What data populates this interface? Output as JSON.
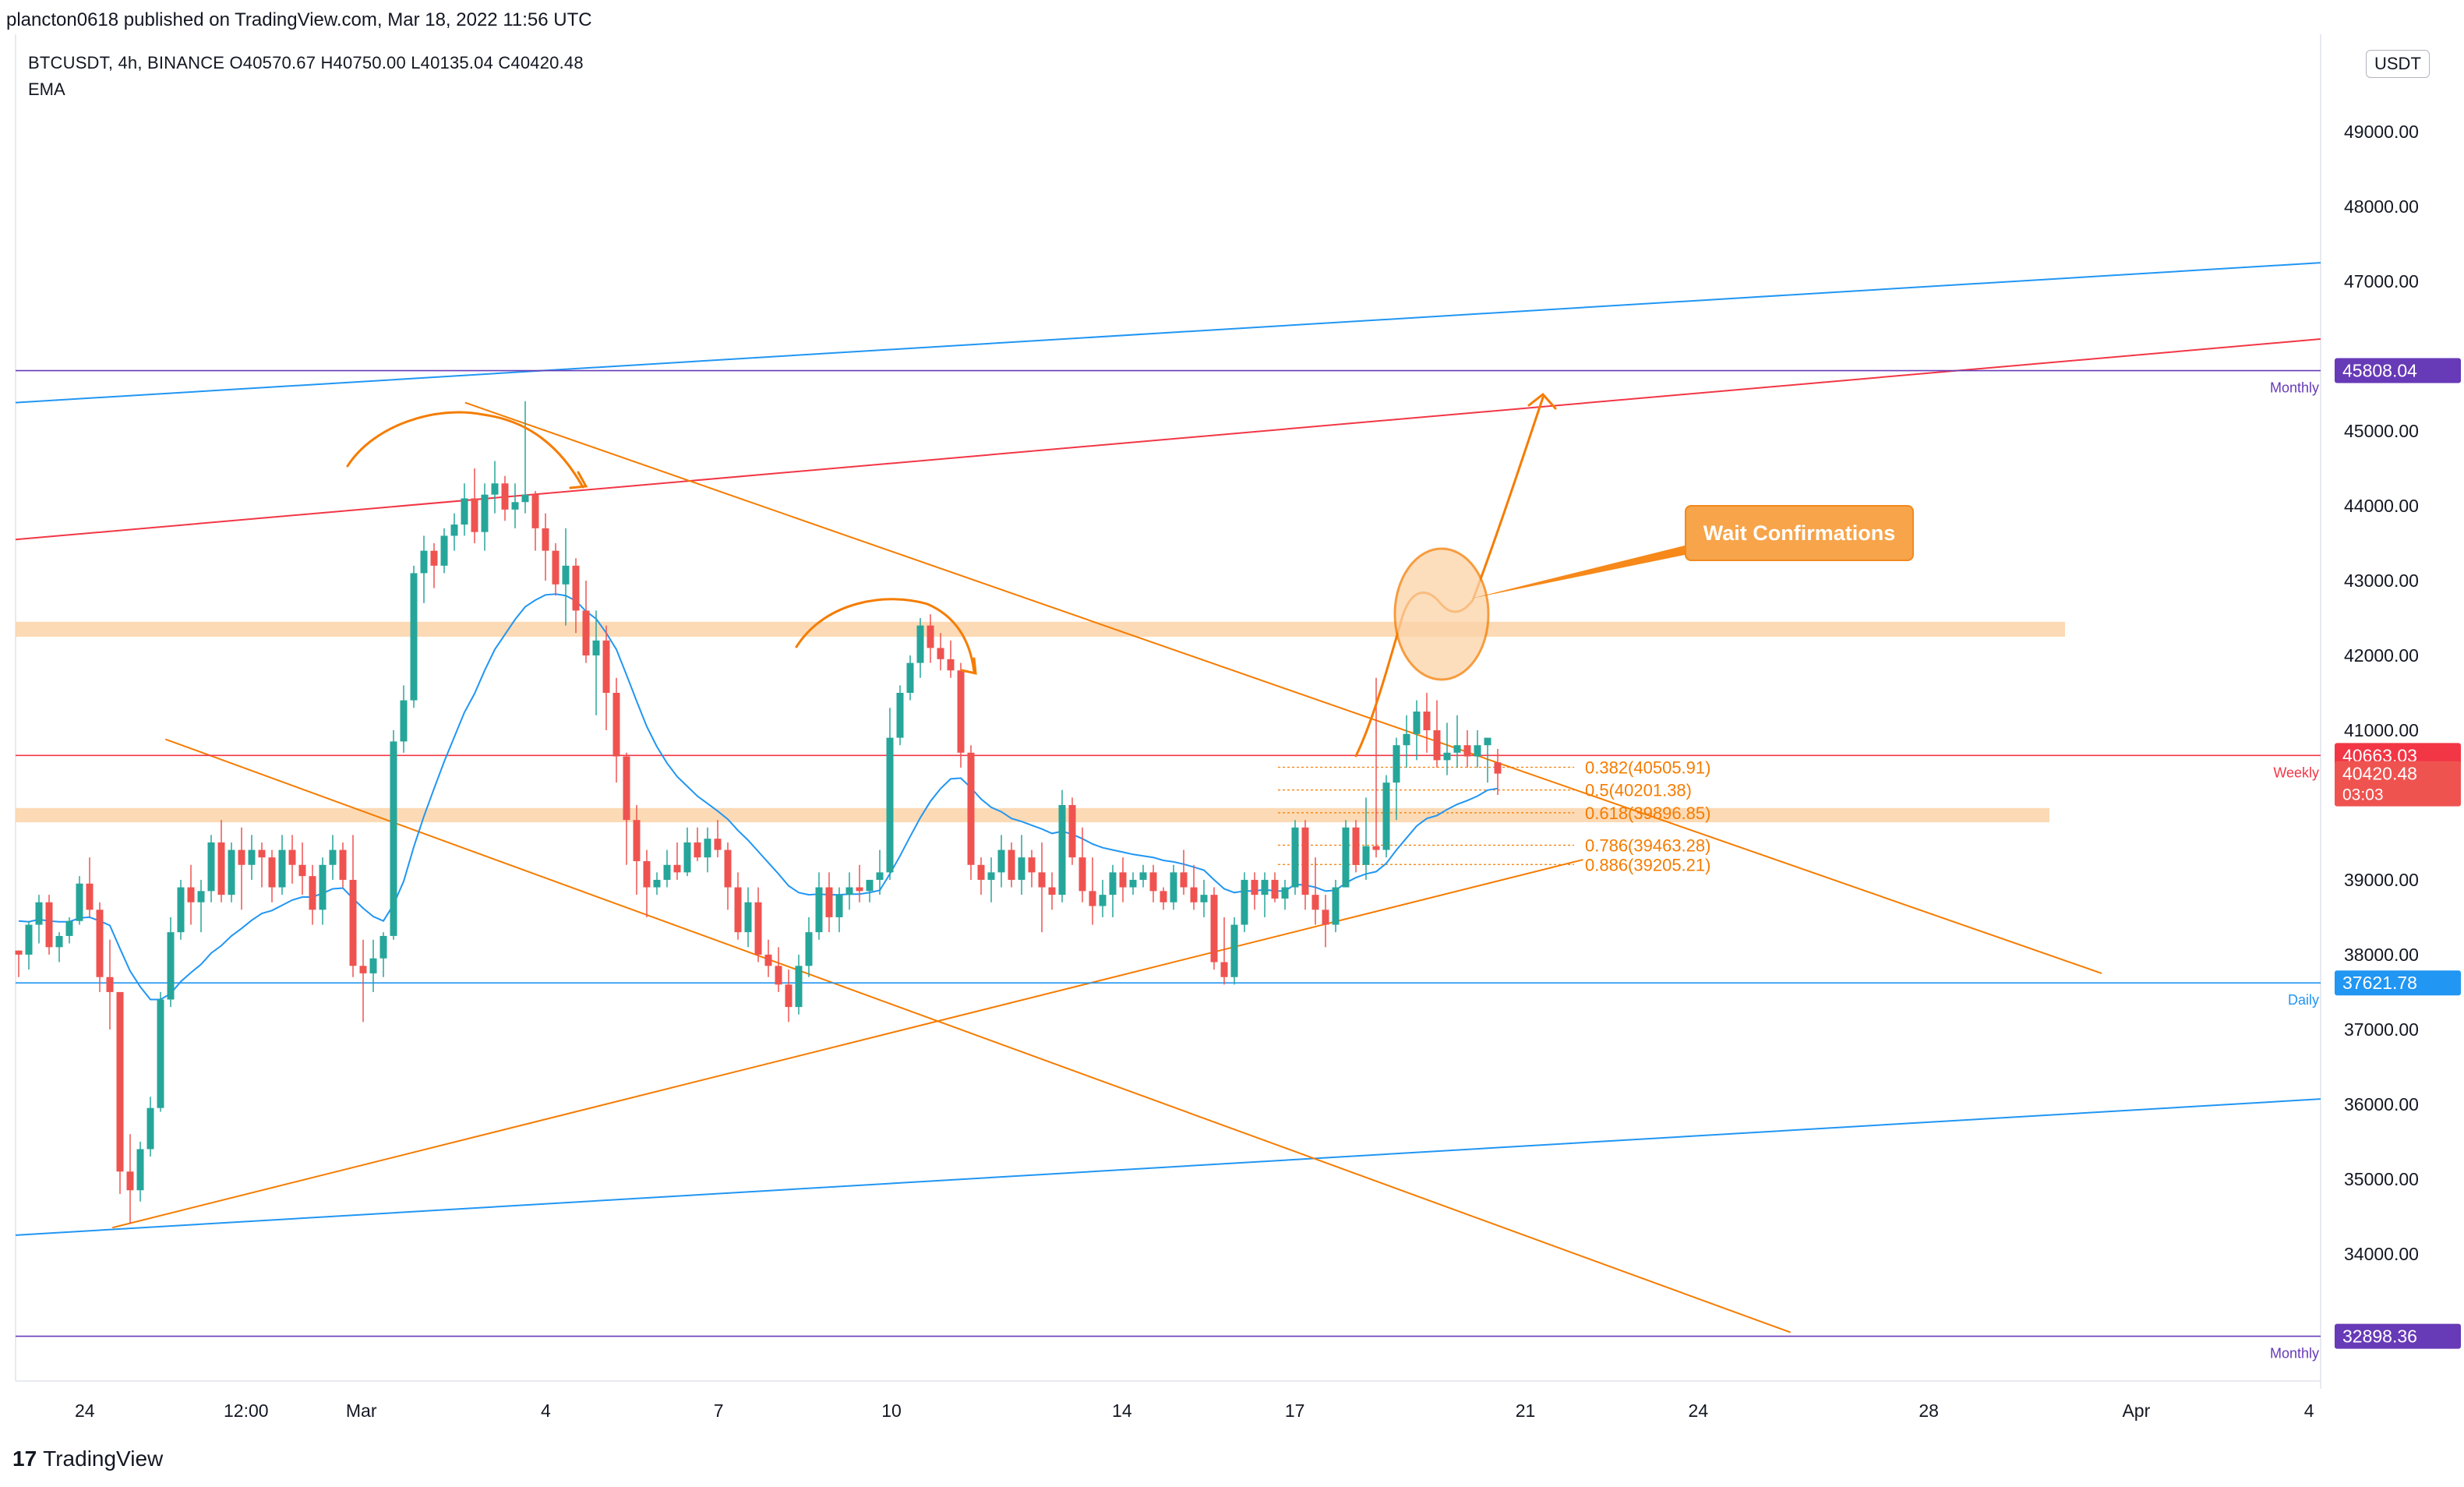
{
  "header": {
    "published_text": "plancton0618 published on TradingView.com, Mar 18, 2022 11:56 UTC",
    "symbol_line": "BTCUSDT, 4h, BINANCE  O40570.67  H40750.00  L40135.04  C40420.48",
    "indicator_label": "EMA",
    "currency_button": "USDT"
  },
  "footer": {
    "logo_mark": "17",
    "logo_text": "TradingView"
  },
  "annotation": {
    "callout_text": "Wait Confirmations"
  },
  "colors": {
    "up": "#26a69a",
    "down": "#ef5350",
    "ema": "#2196f3",
    "orange": "#f57c00",
    "red_level": "#f23645",
    "purple_level": "#673ab7",
    "blue_level": "#2196f3",
    "zone": "#fbd3a8"
  },
  "chart_data": {
    "type": "candlestick",
    "symbol": "BTCUSDT",
    "timeframe": "4h",
    "exchange": "BINANCE",
    "last_ohlc": {
      "open": 40570.67,
      "high": 40750.0,
      "low": 40135.04,
      "close": 40420.48
    },
    "y_axis": {
      "range": [
        32300,
        50200
      ],
      "ticks": [
        34000,
        35000,
        36000,
        37000,
        38000,
        39000,
        41000,
        42000,
        43000,
        44000,
        45000,
        47000,
        48000,
        49000
      ],
      "tick_labels": [
        "34000.00",
        "35000.00",
        "36000.00",
        "37000.00",
        "38000.00",
        "39000.00",
        "41000.00",
        "42000.00",
        "43000.00",
        "44000.00",
        "45000.00",
        "47000.00",
        "48000.00",
        "49000.00"
      ]
    },
    "x_axis": {
      "labels": [
        "24",
        "12:00",
        "Mar",
        "4",
        "7",
        "10",
        "14",
        "17",
        "21",
        "24",
        "28",
        "Apr",
        "4"
      ],
      "label_positions": [
        0.3,
        1.0,
        1.5,
        2.3,
        3.05,
        3.8,
        4.8,
        5.55,
        6.55,
        7.3,
        8.3,
        9.2,
        9.95
      ]
    },
    "price_labels": [
      {
        "value": 45808.04,
        "text": "45808.04",
        "tag": "Monthly",
        "color": "#673ab7"
      },
      {
        "value": 40663.03,
        "text": "40663.03",
        "tag": "Weekly",
        "color": "#f23645"
      },
      {
        "value": 40420.48,
        "text": "40420.48",
        "sub": "03:03",
        "color": "#ef5350"
      },
      {
        "value": 37621.78,
        "text": "37621.78",
        "tag": "Daily",
        "color": "#2196f3"
      },
      {
        "value": 32898.36,
        "text": "32898.36",
        "tag": "Monthly",
        "color": "#673ab7"
      }
    ],
    "horizontal_levels": [
      {
        "name": "Monthly",
        "value": 45808.04,
        "color": "#673ab7"
      },
      {
        "name": "Weekly",
        "value": 40663.03,
        "color": "#f23645"
      },
      {
        "name": "Daily",
        "value": 37621.78,
        "color": "#2196f3"
      },
      {
        "name": "Monthly",
        "value": 32898.36,
        "color": "#673ab7"
      }
    ],
    "zones": [
      {
        "from": 42250,
        "to": 42450
      },
      {
        "from": 39770,
        "to": 39960
      }
    ],
    "fibonacci": [
      {
        "ratio": "0.382",
        "value": 40505.91,
        "label": "0.382(40505.91)"
      },
      {
        "ratio": "0.5",
        "value": 40201.38,
        "label": "0.5(40201.38)"
      },
      {
        "ratio": "0.618",
        "value": 39896.85,
        "label": "0.618(39896.85)"
      },
      {
        "ratio": "0.786",
        "value": 39463.28,
        "label": "0.786(39463.28)"
      },
      {
        "ratio": "0.886",
        "value": 39205.21,
        "label": "0.886(39205.21)"
      }
    ],
    "trendlines": [
      {
        "color": "#2196f3",
        "from": [
          0.0,
          45380
        ],
        "to": [
          10.0,
          47250
        ]
      },
      {
        "color": "#f23645",
        "from": [
          0.0,
          43550
        ],
        "to": [
          10.0,
          46230
        ]
      },
      {
        "color": "#2196f3",
        "from": [
          0.0,
          34250
        ],
        "to": [
          10.0,
          36070
        ]
      },
      {
        "color": "#f57c00",
        "from": [
          1.95,
          45380
        ],
        "to": [
          9.05,
          37750
        ]
      },
      {
        "color": "#f57c00",
        "from": [
          0.65,
          40880
        ],
        "to": [
          7.7,
          32950
        ]
      },
      {
        "color": "#f57c00",
        "from": [
          0.42,
          34350
        ],
        "to": [
          6.8,
          39270
        ]
      }
    ],
    "candles": [
      [
        38055,
        38055,
        37700,
        38000
      ],
      [
        38000,
        38450,
        37800,
        38400
      ],
      [
        38400,
        38800,
        38150,
        38700
      ],
      [
        38700,
        38800,
        38000,
        38100
      ],
      [
        38100,
        38300,
        37900,
        38250
      ],
      [
        38250,
        38500,
        38150,
        38450
      ],
      [
        38450,
        39050,
        38400,
        38950
      ],
      [
        38950,
        39300,
        38500,
        38600
      ],
      [
        38600,
        38700,
        37500,
        37700
      ],
      [
        37700,
        38200,
        37000,
        37500
      ],
      [
        37500,
        37500,
        34800,
        35100
      ],
      [
        35100,
        35600,
        34400,
        34850
      ],
      [
        34850,
        35500,
        34700,
        35400
      ],
      [
        35400,
        36100,
        35300,
        35950
      ],
      [
        35950,
        37500,
        35900,
        37400
      ],
      [
        37400,
        38500,
        37300,
        38300
      ],
      [
        38300,
        39000,
        38200,
        38900
      ],
      [
        38900,
        39200,
        38400,
        38700
      ],
      [
        38700,
        39000,
        38300,
        38850
      ],
      [
        38850,
        39600,
        38700,
        39500
      ],
      [
        39500,
        39800,
        38700,
        38800
      ],
      [
        38800,
        39500,
        38700,
        39400
      ],
      [
        39400,
        39700,
        38600,
        39200
      ],
      [
        39200,
        39600,
        39000,
        39400
      ],
      [
        39400,
        39500,
        38900,
        39300
      ],
      [
        39300,
        39400,
        38700,
        38900
      ],
      [
        38900,
        39600,
        38800,
        39400
      ],
      [
        39400,
        39600,
        38950,
        39200
      ],
      [
        39200,
        39500,
        38800,
        39050
      ],
      [
        39050,
        39200,
        38400,
        38600
      ],
      [
        38600,
        39300,
        38400,
        39200
      ],
      [
        39200,
        39600,
        39000,
        39400
      ],
      [
        39400,
        39500,
        38900,
        39000
      ],
      [
        39000,
        39600,
        37700,
        37850
      ],
      [
        37850,
        38200,
        37100,
        37750
      ],
      [
        37750,
        38200,
        37500,
        37950
      ],
      [
        37950,
        38300,
        37700,
        38250
      ],
      [
        38250,
        41000,
        38200,
        40850
      ],
      [
        40850,
        41600,
        40700,
        41400
      ],
      [
        41400,
        43200,
        41300,
        43100
      ],
      [
        43100,
        43600,
        42700,
        43400
      ],
      [
        43400,
        43500,
        42900,
        43200
      ],
      [
        43200,
        43700,
        43100,
        43600
      ],
      [
        43600,
        43900,
        43400,
        43750
      ],
      [
        43750,
        44300,
        43600,
        44100
      ],
      [
        44100,
        44500,
        43500,
        43650
      ],
      [
        43650,
        44300,
        43400,
        44150
      ],
      [
        44150,
        44600,
        43900,
        44300
      ],
      [
        44300,
        44400,
        43800,
        43950
      ],
      [
        43950,
        44300,
        43700,
        44050
      ],
      [
        44050,
        45400,
        43900,
        44150
      ],
      [
        44150,
        44200,
        43400,
        43700
      ],
      [
        43700,
        43900,
        43000,
        43400
      ],
      [
        43400,
        43500,
        42800,
        42950
      ],
      [
        42950,
        43700,
        42400,
        43200
      ],
      [
        43200,
        43300,
        42300,
        42600
      ],
      [
        42600,
        43000,
        41900,
        42000
      ],
      [
        42000,
        42600,
        41200,
        42200
      ],
      [
        42200,
        42400,
        41000,
        41500
      ],
      [
        41500,
        41700,
        40300,
        40650
      ],
      [
        40650,
        40700,
        39200,
        39800
      ],
      [
        39800,
        40000,
        38800,
        39250
      ],
      [
        39250,
        39400,
        38500,
        38900
      ],
      [
        38900,
        39100,
        38800,
        39000
      ],
      [
        39000,
        39400,
        38900,
        39200
      ],
      [
        39200,
        39500,
        39000,
        39100
      ],
      [
        39100,
        39700,
        39050,
        39500
      ],
      [
        39500,
        39700,
        39250,
        39300
      ],
      [
        39300,
        39700,
        39100,
        39550
      ],
      [
        39550,
        39800,
        39300,
        39400
      ],
      [
        39400,
        39500,
        38600,
        38900
      ],
      [
        38900,
        39100,
        38200,
        38300
      ],
      [
        38300,
        38900,
        38100,
        38700
      ],
      [
        38700,
        38900,
        37900,
        38000
      ],
      [
        38000,
        38200,
        37700,
        37850
      ],
      [
        37850,
        38100,
        37500,
        37600
      ],
      [
        37600,
        37800,
        37100,
        37300
      ],
      [
        37300,
        38000,
        37200,
        37850
      ],
      [
        37850,
        38500,
        37700,
        38300
      ],
      [
        38300,
        39100,
        38200,
        38900
      ],
      [
        38900,
        39100,
        38300,
        38500
      ],
      [
        38500,
        38900,
        38300,
        38800
      ],
      [
        38800,
        39100,
        38600,
        38900
      ],
      [
        38900,
        39200,
        38700,
        38850
      ],
      [
        38850,
        39000,
        38700,
        39000
      ],
      [
        39000,
        39400,
        38800,
        39100
      ],
      [
        39100,
        41300,
        39000,
        40900
      ],
      [
        40900,
        41600,
        40800,
        41500
      ],
      [
        41500,
        42000,
        41400,
        41900
      ],
      [
        41900,
        42500,
        41700,
        42400
      ],
      [
        42400,
        42550,
        41900,
        42100
      ],
      [
        42100,
        42300,
        41800,
        41950
      ],
      [
        41950,
        42200,
        41700,
        41800
      ],
      [
        41800,
        41900,
        40500,
        40700
      ],
      [
        40700,
        40800,
        39000,
        39200
      ],
      [
        39200,
        39300,
        38800,
        39000
      ],
      [
        39000,
        39300,
        38700,
        39100
      ],
      [
        39100,
        39600,
        38900,
        39400
      ],
      [
        39400,
        39500,
        38900,
        39000
      ],
      [
        39000,
        39600,
        38800,
        39300
      ],
      [
        39300,
        39400,
        38900,
        39100
      ],
      [
        39100,
        39500,
        38300,
        38900
      ],
      [
        38900,
        39100,
        38600,
        38800
      ],
      [
        38800,
        40200,
        38700,
        40000
      ],
      [
        40000,
        40100,
        39200,
        39300
      ],
      [
        39300,
        39700,
        38700,
        38850
      ],
      [
        38850,
        39300,
        38400,
        38650
      ],
      [
        38650,
        39000,
        38500,
        38800
      ],
      [
        38800,
        39200,
        38500,
        39100
      ],
      [
        39100,
        39300,
        38700,
        38900
      ],
      [
        38900,
        39100,
        38800,
        39000
      ],
      [
        39000,
        39200,
        38900,
        39100
      ],
      [
        39100,
        39200,
        38700,
        38850
      ],
      [
        38850,
        38900,
        38600,
        38700
      ],
      [
        38700,
        39200,
        38600,
        39100
      ],
      [
        39100,
        39400,
        38800,
        38900
      ],
      [
        38900,
        39200,
        38600,
        38700
      ],
      [
        38700,
        39000,
        38500,
        38800
      ],
      [
        38800,
        38900,
        37800,
        37900
      ],
      [
        37900,
        38500,
        37600,
        37700
      ],
      [
        37700,
        38500,
        37600,
        38400
      ],
      [
        38400,
        39100,
        38300,
        39000
      ],
      [
        39000,
        39100,
        38600,
        38800
      ],
      [
        38800,
        39100,
        38500,
        39000
      ],
      [
        39000,
        39100,
        38700,
        38750
      ],
      [
        38750,
        39000,
        38600,
        38900
      ],
      [
        38900,
        39800,
        38800,
        39700
      ],
      [
        39700,
        39800,
        38600,
        38800
      ],
      [
        38800,
        39300,
        38400,
        38600
      ],
      [
        38600,
        38800,
        38100,
        38400
      ],
      [
        38400,
        39000,
        38300,
        38900
      ],
      [
        38900,
        39800,
        38900,
        39700
      ],
      [
        39700,
        39800,
        39100,
        39200
      ],
      [
        39200,
        40100,
        39000,
        39450
      ],
      [
        39450,
        41700,
        39300,
        39400
      ],
      [
        39400,
        40400,
        39300,
        40300
      ],
      [
        40300,
        40900,
        39800,
        40800
      ],
      [
        40800,
        41200,
        40500,
        40950
      ],
      [
        40950,
        41400,
        40600,
        41250
      ],
      [
        41250,
        41500,
        40700,
        41000
      ],
      [
        41000,
        41400,
        40500,
        40600
      ],
      [
        40600,
        41100,
        40400,
        40700
      ],
      [
        40700,
        41200,
        40500,
        40800
      ],
      [
        40800,
        41000,
        40500,
        40650
      ],
      [
        40650,
        41000,
        40500,
        40800
      ],
      [
        40800,
        40900,
        40300,
        40900
      ],
      [
        40570.67,
        40750,
        40135.04,
        40420.48
      ]
    ],
    "ema": [
      38450,
      38440,
      38470,
      38450,
      38440,
      38440,
      38490,
      38500,
      38450,
      38390,
      38080,
      37780,
      37570,
      37400,
      37400,
      37480,
      37640,
      37760,
      37870,
      38020,
      38120,
      38250,
      38350,
      38460,
      38550,
      38590,
      38660,
      38730,
      38770,
      38770,
      38820,
      38880,
      38890,
      38750,
      38620,
      38510,
      38450,
      38670,
      38980,
      39440,
      39850,
      40220,
      40580,
      40910,
      41240,
      41490,
      41800,
      42080,
      42280,
      42480,
      42650,
      42740,
      42810,
      42820,
      42800,
      42730,
      42590,
      42490,
      42300,
      42080,
      41740,
      41390,
      41050,
      40780,
      40560,
      40380,
      40250,
      40120,
      40020,
      39920,
      39810,
      39660,
      39530,
      39380,
      39230,
      39080,
      38920,
      38830,
      38800,
      38810,
      38800,
      38800,
      38810,
      38810,
      38830,
      38860,
      39080,
      39320,
      39580,
      39830,
      40050,
      40220,
      40350,
      40360,
      40230,
      40080,
      39970,
      39910,
      39820,
      39780,
      39730,
      39680,
      39620,
      39650,
      39610,
      39550,
      39480,
      39430,
      39400,
      39370,
      39340,
      39320,
      39300,
      39260,
      39240,
      39210,
      39170,
      39130,
      39000,
      38880,
      38830,
      38850,
      38850,
      38870,
      38850,
      38850,
      38940,
      38930,
      38900,
      38850,
      38860,
      38960,
      39030,
      39080,
      39110,
      39220,
      39400,
      39560,
      39720,
      39820,
      39860,
      39940,
      40010,
      40060,
      40120,
      40200,
      40222
    ],
    "drawings": {
      "arcs": [
        "top-left arc with arrow over early March peak",
        "arc with arrow over Mar 10 peak"
      ],
      "projection_arrow": "orange path from current price up to about 45808 target",
      "highlight_circle": "orange circle near 42300 zone retest"
    }
  }
}
